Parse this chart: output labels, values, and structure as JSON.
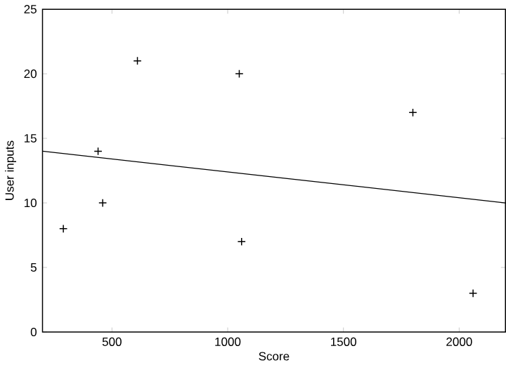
{
  "chart_data": {
    "type": "scatter",
    "xlabel": "Score",
    "ylabel": "User inputs",
    "xlim": [
      200,
      2200
    ],
    "ylim": [
      0,
      25
    ],
    "xticks": [
      500,
      1000,
      1500,
      2000
    ],
    "yticks": [
      0,
      5,
      10,
      15,
      20,
      25
    ],
    "grid": false,
    "series": [
      {
        "color": "#000000",
        "marker": "cross",
        "x": [
          290,
          440,
          460,
          610,
          1050,
          1060,
          1800,
          2060
        ],
        "values": [
          8,
          14,
          10,
          21,
          20,
          7,
          17,
          3
        ]
      },
      {
        "type": "line",
        "marker": "none",
        "color": "#000000",
        "x": [
          200,
          2200
        ],
        "values": [
          14,
          10
        ]
      }
    ]
  }
}
